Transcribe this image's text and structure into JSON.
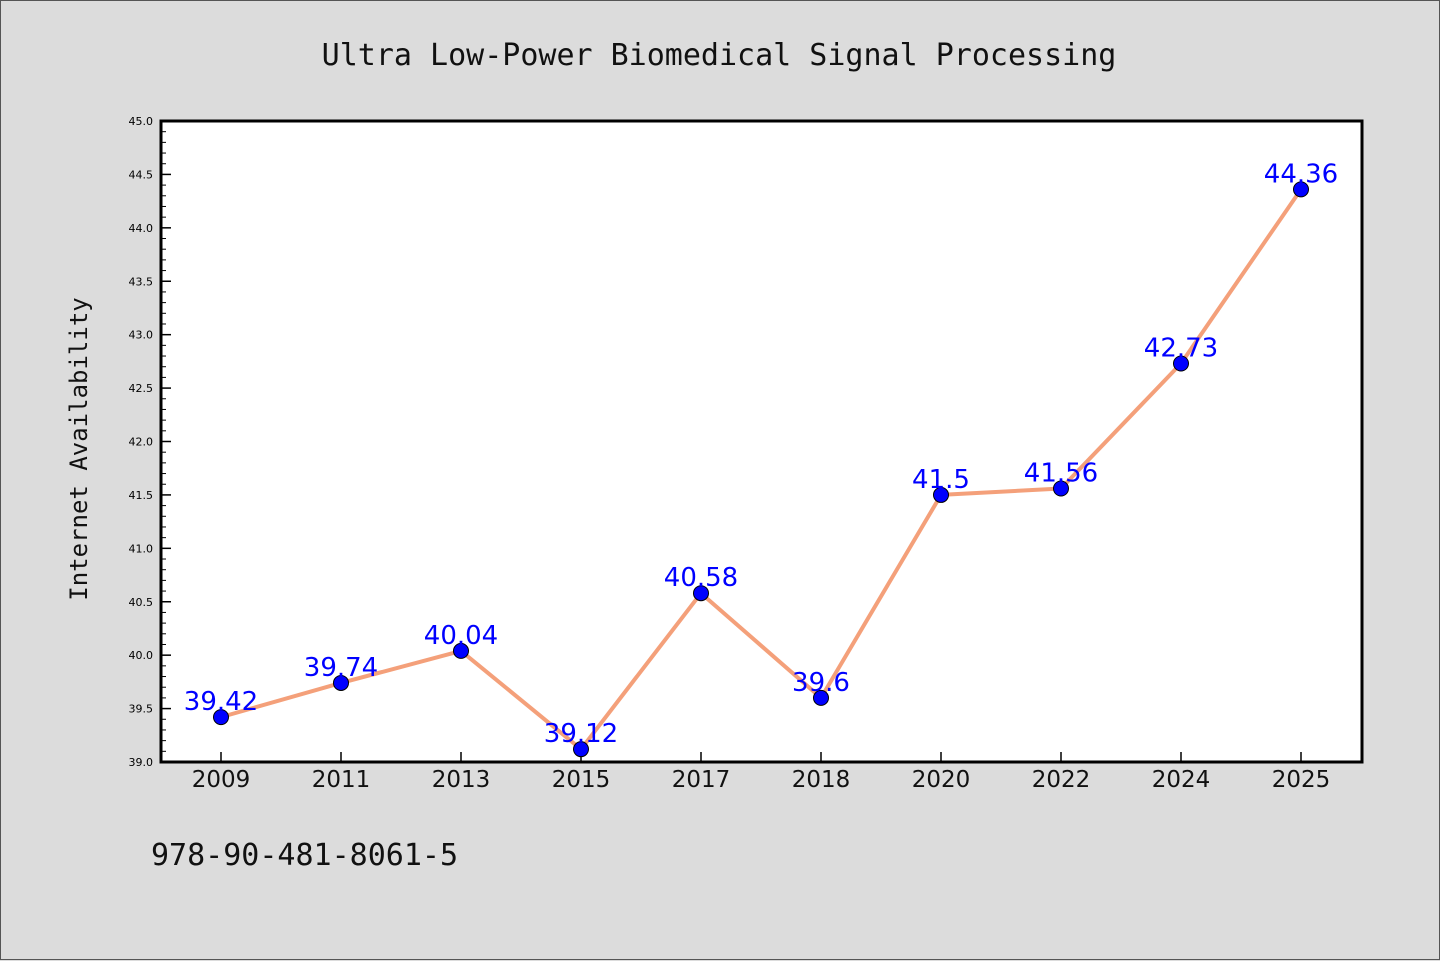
{
  "chart_data": {
    "type": "line",
    "title": "Ultra Low-Power Biomedical Signal Processing",
    "xlabel": "",
    "ylabel": "Internet Availability",
    "categories": [
      "2009",
      "2011",
      "2013",
      "2015",
      "2017",
      "2018",
      "2020",
      "2022",
      "2024",
      "2025"
    ],
    "series": [
      {
        "values": [
          39.42,
          39.74,
          40.04,
          39.12,
          40.58,
          39.6,
          41.5,
          41.56,
          42.73,
          44.36
        ],
        "data_labels": [
          "39.42",
          "39.74",
          "40.04",
          "39.12",
          "40.58",
          "39.6",
          "41.5",
          "41.56",
          "42.73",
          "44.36"
        ],
        "line_color": "#f4a07a",
        "marker_color": "#0000ff"
      }
    ],
    "ylim": [
      39.0,
      45.0
    ],
    "yticks": [
      "39.0",
      "39.5",
      "40.0",
      "40.5",
      "41.0",
      "41.5",
      "42.0",
      "42.5",
      "43.0",
      "43.5",
      "44.0",
      "44.5",
      "45.0"
    ],
    "grid": false,
    "legend": "none"
  },
  "footer": {
    "isbn": "978-90-481-8061-5"
  }
}
